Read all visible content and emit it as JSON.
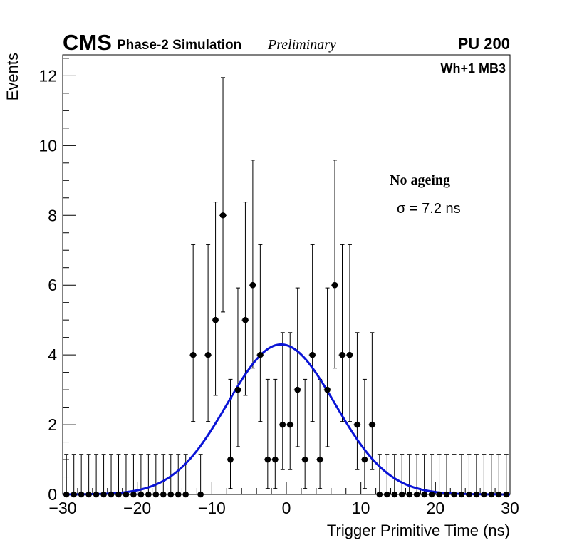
{
  "header": {
    "experiment": "CMS",
    "simulation": "Phase-2 Simulation",
    "status": "Preliminary",
    "pileup": "PU 200",
    "region": "Wh+1 MB3"
  },
  "annotation": {
    "condition": "No ageing",
    "sigma_label": "σ = 7.2 ns"
  },
  "chart_data": {
    "type": "scatter",
    "title": "",
    "xlabel": "Trigger Primitive Time (ns)",
    "ylabel": "Events",
    "xlim": [
      -30,
      30
    ],
    "ylim": [
      0,
      12.6
    ],
    "x_ticks": [
      -30,
      -20,
      -10,
      0,
      10,
      20,
      30
    ],
    "x_tick_labels": [
      "−30",
      "−20",
      "−10",
      "0",
      "10",
      "20",
      "30"
    ],
    "y_ticks": [
      0,
      2,
      4,
      6,
      8,
      10,
      12
    ],
    "y_tick_labels": [
      "0",
      "2",
      "4",
      "6",
      "8",
      "10",
      "12"
    ],
    "grid": false,
    "points": {
      "name": "Events",
      "marker_color": "#000000",
      "x": [
        -29.5,
        -28.5,
        -27.5,
        -26.5,
        -25.5,
        -24.5,
        -23.5,
        -22.5,
        -21.5,
        -20.5,
        -19.5,
        -18.5,
        -17.5,
        -16.5,
        -15.5,
        -14.5,
        -13.5,
        -12.5,
        -11.5,
        -10.5,
        -9.5,
        -8.5,
        -7.5,
        -6.5,
        -5.5,
        -4.5,
        -3.5,
        -2.5,
        -1.5,
        -0.5,
        0.5,
        1.5,
        2.5,
        3.5,
        4.5,
        5.5,
        6.5,
        7.5,
        8.5,
        9.5,
        10.5,
        11.5,
        12.5,
        13.5,
        14.5,
        15.5,
        16.5,
        17.5,
        18.5,
        19.5,
        20.5,
        21.5,
        22.5,
        23.5,
        24.5,
        25.5,
        26.5,
        27.5,
        28.5,
        29.5
      ],
      "y": [
        0,
        0,
        0,
        0,
        0,
        0,
        0,
        0,
        0,
        0,
        0,
        0,
        0,
        0,
        0,
        0,
        0,
        4,
        0,
        4,
        5,
        8,
        1,
        3,
        5,
        6,
        4,
        1,
        1,
        2,
        2,
        3,
        1,
        4,
        1,
        3,
        6,
        4,
        4,
        2,
        1,
        2,
        0,
        0,
        0,
        0,
        0,
        0,
        0,
        0,
        0,
        0,
        0,
        0,
        0,
        0,
        0,
        0,
        0,
        0
      ],
      "y_err_low": [
        0,
        0,
        0,
        0,
        0,
        0,
        0,
        0,
        0,
        0,
        0,
        0,
        0,
        0,
        0,
        0,
        0,
        1.91,
        0,
        1.91,
        2.16,
        2.77,
        0.83,
        1.63,
        2.16,
        2.38,
        1.91,
        0.83,
        0.83,
        1.29,
        1.29,
        1.63,
        0.83,
        1.91,
        0.83,
        1.63,
        2.38,
        1.91,
        1.91,
        1.29,
        0.83,
        1.29,
        0,
        0,
        0,
        0,
        0,
        0,
        0,
        0,
        0,
        0,
        0,
        0,
        0,
        0,
        0,
        0,
        0,
        0
      ],
      "y_err_high": [
        1.15,
        1.15,
        1.15,
        1.15,
        1.15,
        1.15,
        1.15,
        1.15,
        1.15,
        1.15,
        1.15,
        1.15,
        1.15,
        1.15,
        1.15,
        1.15,
        1.15,
        3.16,
        1.15,
        3.16,
        3.38,
        3.95,
        2.3,
        2.92,
        3.38,
        3.58,
        3.16,
        2.3,
        2.3,
        2.64,
        2.64,
        2.92,
        2.3,
        3.16,
        2.3,
        2.92,
        3.58,
        3.16,
        3.16,
        2.64,
        2.3,
        2.64,
        1.15,
        1.15,
        1.15,
        1.15,
        1.15,
        1.15,
        1.15,
        1.15,
        1.15,
        1.15,
        1.15,
        1.15,
        1.15,
        1.15,
        1.15,
        1.15,
        1.15,
        1.15
      ]
    },
    "fit": {
      "name": "Gaussian fit",
      "type": "line",
      "color": "#0a14d6",
      "amplitude": 4.3,
      "mean": -0.7,
      "sigma": 7.2
    }
  }
}
